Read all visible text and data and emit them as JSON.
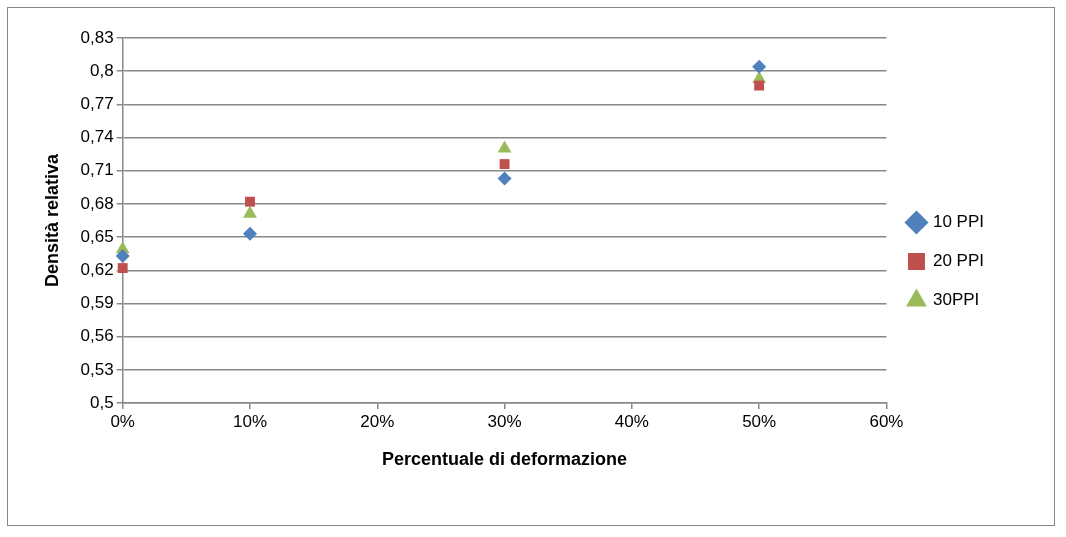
{
  "chart_data": {
    "type": "scatter",
    "xlabel": "Percentuale di deformazione",
    "ylabel": "Densità relativa",
    "x": [
      0,
      10,
      30,
      50
    ],
    "series": [
      {
        "name": "10 PPI",
        "color": "#4f81bd",
        "marker": "diamond",
        "values": [
          0.633,
          0.653,
          0.703,
          0.804
        ]
      },
      {
        "name": "20 PPI",
        "color": "#c0504d",
        "marker": "square",
        "values": [
          0.622,
          0.682,
          0.716,
          0.787
        ]
      },
      {
        "name": "30PPI",
        "color": "#9bbb59",
        "marker": "triangle",
        "values": [
          0.639,
          0.671,
          0.73,
          0.793
        ]
      }
    ],
    "xlim": [
      0,
      60
    ],
    "xticks": [
      {
        "value": 0,
        "label": "0%"
      },
      {
        "value": 10,
        "label": "10%"
      },
      {
        "value": 20,
        "label": "20%"
      },
      {
        "value": 30,
        "label": "30%"
      },
      {
        "value": 40,
        "label": "40%"
      },
      {
        "value": 50,
        "label": "50%"
      },
      {
        "value": 60,
        "label": "60%"
      }
    ],
    "ylim": [
      0.5,
      0.83
    ],
    "yticks": [
      {
        "value": 0.5,
        "label": "0,5"
      },
      {
        "value": 0.53,
        "label": "0,53"
      },
      {
        "value": 0.56,
        "label": "0,56"
      },
      {
        "value": 0.59,
        "label": "0,59"
      },
      {
        "value": 0.62,
        "label": "0,62"
      },
      {
        "value": 0.65,
        "label": "0,65"
      },
      {
        "value": 0.68,
        "label": "0,68"
      },
      {
        "value": 0.71,
        "label": "0,71"
      },
      {
        "value": 0.74,
        "label": "0,74"
      },
      {
        "value": 0.77,
        "label": "0,77"
      },
      {
        "value": 0.8,
        "label": "0,8"
      },
      {
        "value": 0.83,
        "label": "0,83"
      }
    ],
    "grid": "y",
    "legend": "right"
  }
}
